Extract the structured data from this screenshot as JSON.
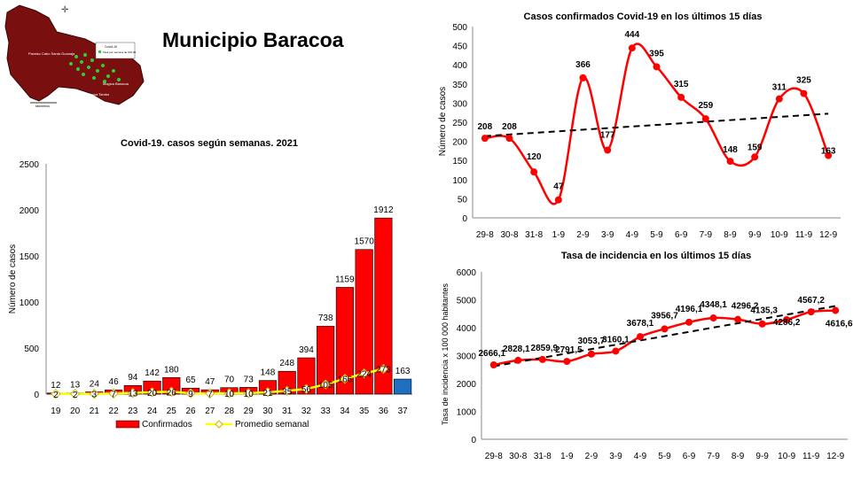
{
  "page": {
    "title": "Municipio Baracoa"
  },
  "map": {
    "legend_title": "Covid-19",
    "legend_text": "Tasa por semana de 100 00",
    "region_labels": [
      "Paraíso Cabo Santa Guanaja",
      "Magica Baracoa",
      "Reparto Barbosa Tambo"
    ],
    "scale_label": "kilómetros",
    "colors": {
      "land": "#7a0f0f",
      "points": "#33cc33"
    }
  },
  "chart_data": [
    {
      "type": "bar",
      "title": "Covid-19. casos según semanas. 2021",
      "xlabel": "",
      "ylabel": "Número de casos",
      "categories": [
        "19",
        "20",
        "21",
        "22",
        "23",
        "24",
        "25",
        "26",
        "27",
        "28",
        "29",
        "30",
        "31",
        "32",
        "33",
        "34",
        "35",
        "36",
        "37"
      ],
      "ylim": [
        0,
        2500
      ],
      "yticks": [
        0,
        500,
        1000,
        1500,
        2000,
        2500
      ],
      "series": [
        {
          "name": "Confirmados",
          "kind": "bar",
          "color": "#ff0000",
          "values": [
            12,
            13,
            24,
            46,
            94,
            142,
            180,
            65,
            47,
            70,
            73,
            148,
            248,
            394,
            738,
            1159,
            1570,
            1912,
            163
          ],
          "highlight_last_color": "#1f6fc1"
        },
        {
          "name": "Promedio semanal",
          "kind": "line",
          "color": "#ffff00",
          "values": [
            2,
            2,
            3,
            7,
            13,
            20,
            26,
            9,
            7,
            10,
            10,
            21,
            35,
            56,
            105,
            166,
            224,
            273,
            null
          ]
        }
      ],
      "legend": "bottom",
      "grid": false
    },
    {
      "type": "line",
      "title": "Casos confirmados  Covid-19 en los últimos 15 días",
      "xlabel": "",
      "ylabel": "Número de casos",
      "categories": [
        "29-8",
        "30-8",
        "31-8",
        "1-9",
        "2-9",
        "3-9",
        "4-9",
        "5-9",
        "6-9",
        "7-9",
        "8-9",
        "9-9",
        "10-9",
        "11-9",
        "12-9"
      ],
      "ylim": [
        0,
        500
      ],
      "yticks": [
        0,
        50,
        100,
        150,
        200,
        250,
        300,
        350,
        400,
        450,
        500
      ],
      "series": [
        {
          "name": "",
          "color": "#ff0000",
          "values": [
            208,
            208,
            120,
            47,
            366,
            177,
            444,
            395,
            315,
            259,
            148,
            159,
            311,
            325,
            163
          ]
        }
      ],
      "trendline": true,
      "grid": false
    },
    {
      "type": "line",
      "title": "Tasa de incidencia  en los últimos 15 días",
      "xlabel": "",
      "ylabel": "Tasa de incidencia x 100 000 habitantes",
      "categories": [
        "29-8",
        "30-8",
        "31-8",
        "1-9",
        "2-9",
        "3-9",
        "4-9",
        "5-9",
        "6-9",
        "7-9",
        "8-9",
        "9-9",
        "10-9",
        "11-9",
        "12-9"
      ],
      "ylim": [
        0,
        6000
      ],
      "yticks": [
        0,
        1000,
        2000,
        3000,
        4000,
        5000,
        6000
      ],
      "series": [
        {
          "name": "",
          "color": "#ff0000",
          "values": [
            2666.1,
            2828.1,
            2859.9,
            2791.5,
            3053.7,
            3160.1,
            3678.1,
            3956.7,
            4196.1,
            4348.1,
            4296.2,
            4135.3,
            4286.2,
            4567.2,
            4616.6
          ],
          "labels": [
            "2666,1",
            "2828,1",
            "2859,9",
            "2791,5",
            "3053,7",
            "3160,1",
            "3678,1",
            "3956,7",
            "4196,1",
            "4348,1",
            "4296,2",
            "4135,3",
            "4286,2",
            "4567,2",
            "4616,6"
          ]
        }
      ],
      "trendline": true,
      "grid": false
    }
  ]
}
